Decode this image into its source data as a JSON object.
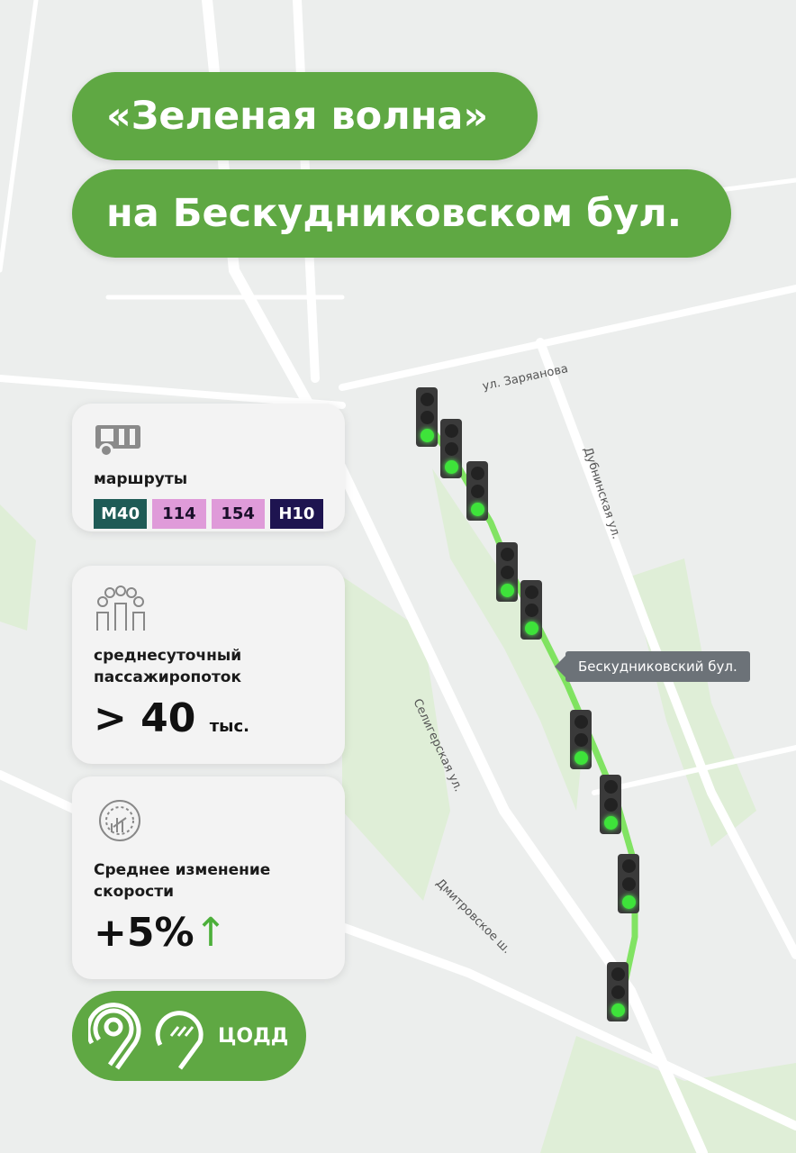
{
  "title": {
    "line1": "«Зеленая волна»",
    "line2": "на Бескудниковском бул."
  },
  "streets": {
    "zaryanova": "ул. Заряанова",
    "dubninskaya": "Дубнинская ул.",
    "seligerskaya": "Селигерская ул.",
    "dmitrovskoe": "Дмитровское ш.",
    "beskudnikovsky": "Бескудниковский бул."
  },
  "cards": {
    "routes": {
      "icon": "bus-icon",
      "label": "маршруты",
      "items": [
        {
          "name": "М40",
          "bg": "#1f5b56",
          "fg": "#ffffff"
        },
        {
          "name": "114",
          "bg": "#df9bd9",
          "fg": "#1a0f2a"
        },
        {
          "name": "154",
          "bg": "#df9bd9",
          "fg": "#1a0f2a"
        },
        {
          "name": "Н10",
          "bg": "#1e1450",
          "fg": "#ffffff"
        }
      ]
    },
    "passengers": {
      "icon": "people-icon",
      "label": "среднесуточный пассажиропоток",
      "value": "> 40",
      "unit": "тыс."
    },
    "speed": {
      "icon": "speedometer-icon",
      "label": "Среднее изменение скорости",
      "value": "+5%",
      "trend": "up-arrow-icon"
    }
  },
  "logo": {
    "text": "ЦОДД"
  },
  "colors": {
    "accent": "#5fa843",
    "route": "#6fe04a",
    "arrow": "#4caf3a"
  },
  "traffic_lights": 9
}
